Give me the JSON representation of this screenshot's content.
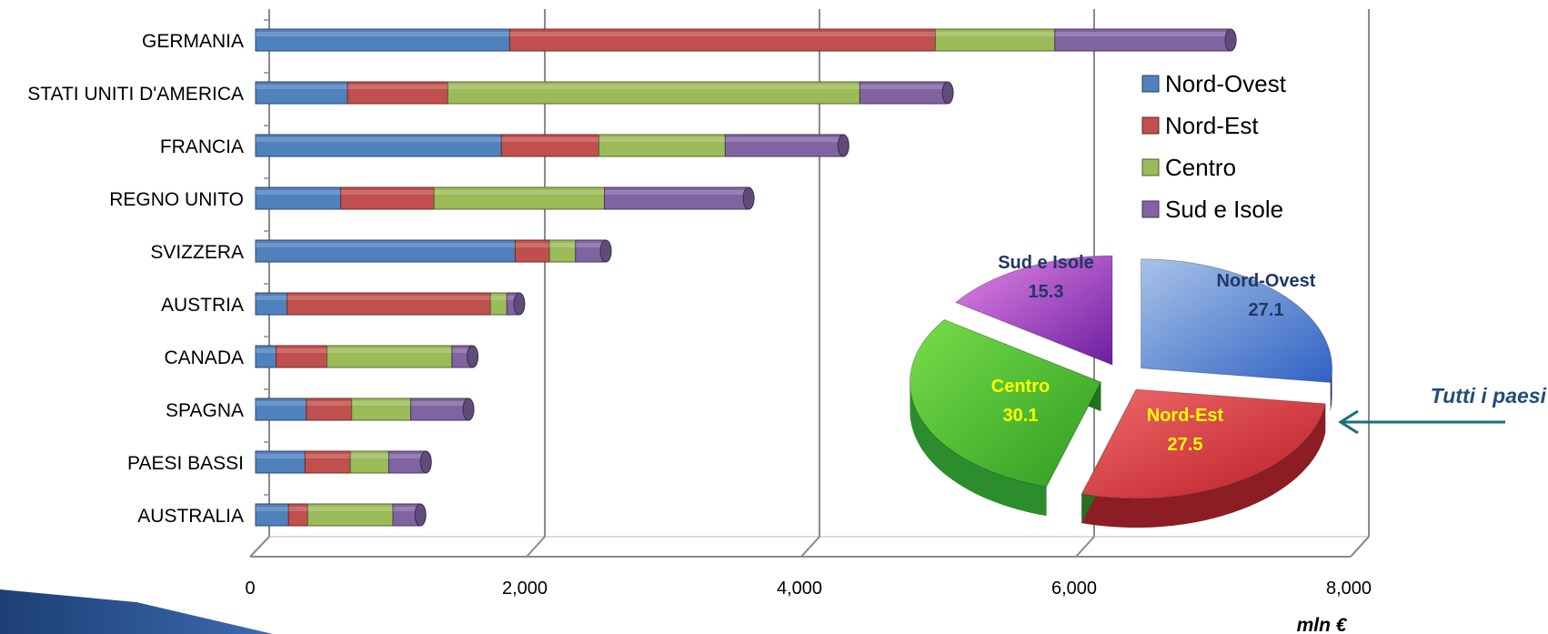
{
  "chart_data": [
    {
      "type": "bar",
      "orientation": "horizontal",
      "stacked": true,
      "categories": [
        "GERMANIA",
        "STATI UNITI D'AMERICA",
        "FRANCIA",
        "REGNO UNITO",
        "SVIZZERA",
        "AUSTRIA",
        "CANADA",
        "SPAGNA",
        "PAESI BASSI",
        "AUSTRALIA"
      ],
      "series": [
        {
          "name": "Nord-Ovest",
          "color": "#4f81bd",
          "values": [
            1850,
            670,
            1790,
            620,
            1890,
            230,
            150,
            370,
            360,
            240
          ]
        },
        {
          "name": "Nord-Est",
          "color": "#c0504d",
          "values": [
            3100,
            730,
            710,
            680,
            250,
            1480,
            370,
            330,
            330,
            140
          ]
        },
        {
          "name": "Centro",
          "color": "#9bbb59",
          "values": [
            870,
            3000,
            920,
            1240,
            190,
            120,
            910,
            430,
            280,
            620
          ]
        },
        {
          "name": "Sud e Isole",
          "color": "#8064a2",
          "values": [
            1280,
            640,
            860,
            1050,
            220,
            90,
            150,
            420,
            270,
            200
          ]
        }
      ],
      "xlim": [
        0,
        8000
      ],
      "x_ticks": [
        "0",
        "2,000",
        "4,000",
        "6,000",
        "8,000"
      ],
      "xlabel": "mln €",
      "grid": true,
      "legend": "right",
      "style": "3d"
    },
    {
      "type": "pie",
      "exploded": true,
      "style": "3d",
      "labels": [
        "Nord-Ovest",
        "Nord-Est",
        "Centro",
        "Sud e Isole"
      ],
      "values": [
        27.1,
        27.5,
        30.1,
        15.3
      ],
      "value_labels": [
        "27.1",
        "27.5",
        "30.1",
        "15.3"
      ],
      "colors": [
        "#4f81bd",
        "#c0504d",
        "#4fbf3a",
        "#b040c0"
      ],
      "annotation": "Tutti i paesi"
    }
  ]
}
